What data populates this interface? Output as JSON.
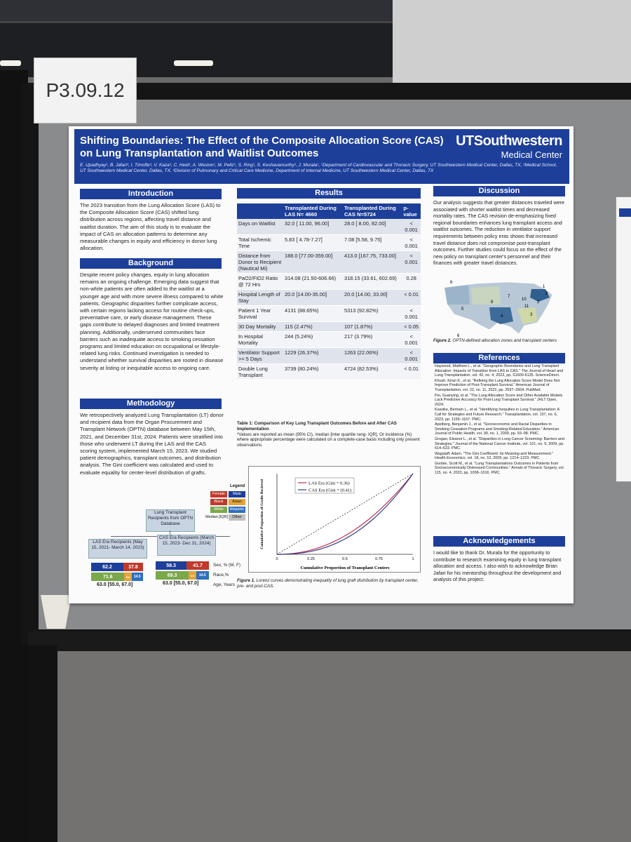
{
  "booth_number": "P3.09.12",
  "poster": {
    "title": "Shifting Boundaries: The Effect of the Composite Allocation Score (CAS) on Lung Transplantation and Waitlist Outcomes",
    "logo_line1": "UTSouthwestern",
    "logo_line2": "Medical Center",
    "authors": "E. Upadhyay¹, B. Jafari², I. Timofte³, V. Kaza³, C. Heid¹, A. Weston¹, M. Peltz¹, S. Ring¹, S. Keshavamurthy¹, J. Murala¹, ¹Department of Cardiovascular and Thoracic Surgery, UT Southwestern Medical Center, Dallas, TX, ²Medical School, UT Southwestern Medical Center, Dallas, TX, ³Division of Pulmonary and Critical Care Medicine, Department of Internal Medicine, UT Southwestern Medical Center, Dallas, TX",
    "introduction": {
      "heading": "Introduction",
      "text": "The 2023 transition from the Lung Allocation Score (LAS) to the Composite Allocation Score (CAS) shifted lung distribution across regions, affecting travel distance and waitlist duration. The aim of this study is to evaluate the impact of CAS on allocation patterns to determine any measurable changes in equity and efficiency in donor lung allocation."
    },
    "background": {
      "heading": "Background",
      "text": "Despite recent policy changes, equity in lung allocation remains an ongoing challenge. Emerging data suggest that non-white patients are often added to the waitlist at a younger age and with more severe illness compared to white patients. Geographic disparities further complicate access, with certain regions lacking access for routine check-ups, preventative care, or early disease management. These gaps contribute to delayed diagnoses and limited treatment planning. Additionally, underserved communities face barriers such as inadequate access to smoking cessation programs and limited education on occupational or lifestyle-related lung risks. Continued investigation is needed to understand whether survival disparities are rooted in disease severity at listing or inequitable access to ongoing care."
    },
    "methodology": {
      "heading": "Methodology",
      "text": "We retrospectively analyzed Lung Transplantation (LT) donor and recipient data from the Organ Procurement and Transplant Network (OPTN) database between May 15th, 2021, and December 31st, 2024. Patients were stratified into those who underwent LT during the LAS and the CAS scoring system, implemented March 15, 2023. We studied patient demographics, transplant outcomes, and distribution analysis. The Gini coefficient was calculated and used to evaluate equality for center-level distribution of grafts.",
      "flow_top": "Lung Transplant Recipients from OPTN Database",
      "flow_left": "LAS Era Recipients (May 15, 2021- March 14, 2023)",
      "flow_right": "CAS Era Recipients (March 15, 2023- Dec 31, 2024)",
      "legend_title": "Legend",
      "legend_items": [
        "Female",
        "Male",
        "Black",
        "Asian",
        "White",
        "Hispanic",
        "Median [IQR]",
        "Other"
      ],
      "las_sex": [
        "62.2",
        "37.8"
      ],
      "las_race": [
        "71.6",
        "8.8",
        "14.5"
      ],
      "las_age": "63.0 [55.0, 67.0]",
      "cas_sex": [
        "58.3",
        "41.7"
      ],
      "cas_race": [
        "69.3",
        "4.5",
        "14.5"
      ],
      "cas_age": "63.0 [55.0, 67.0]",
      "row_sex": "Sex, % (M, F)",
      "row_race": "Race,%",
      "row_age": "Age, Years"
    },
    "results": {
      "heading": "Results",
      "columns": [
        "",
        "Transplanted During LAS N= 4660",
        "Transplanted During CAS N=5724",
        "p-value"
      ],
      "rows": [
        [
          "Days on Waitlist",
          "32.0 [ 11.00, 96.00]",
          "28.0 [ 8.00, 82.00]",
          "< 0.001"
        ],
        [
          "Total Ischemic Time",
          "5.83 [ 4.78-7.27]",
          "7.08 [5.58, 9.75]",
          "< 0.001"
        ],
        [
          "Distance from Donor to Recipient (Nautical Mi)",
          "188.0 [77.00-359.00]",
          "413.0 [167.75, 733.00]",
          "< 0.001"
        ],
        [
          "PaO2/FiO2 Ratio @ 72 Hrs",
          "314.08 (21.50-606.66)",
          "318.15 (33.61, 602.69)",
          "0.28"
        ],
        [
          "Hospital Length of Stay",
          "20.0 [14.00-35.00]",
          "20.0 [14.00, 33.00]",
          "< 0.01"
        ],
        [
          "Patient 1 Year Survival",
          "4131 (88.65%)",
          "5313 (92.82%)",
          "< 0.001"
        ],
        [
          "30 Day Mortality",
          "115 (2.47%)",
          "107 (1.87%)",
          "< 0.05"
        ],
        [
          "In Hospital Mortality",
          "244 (5.24%)",
          "217 (3.79%)",
          "< 0.001"
        ],
        [
          "Ventilator Support >= 5 Days",
          "1229 (26.37%)",
          "1263 (22.06%)",
          "< 0.001"
        ],
        [
          "Double Lung Transplant",
          "3739 (80.24%)",
          "4724 (82.53%)",
          "< 0.01"
        ]
      ],
      "table_caption_bold": "Table 1: Comparison of Key Lung Transplant Outcomes Before and After CAS Implementation",
      "table_caption_note": "*Values are reported as mean (95% CI), median [inter quartile rang- IQR]. Or incidence (%) where appropriate percentage were calculated on a complete-case basis including only present observations.",
      "figure_caption_bold": "Figure 1.",
      "figure_caption": "Lorenz curves demonstrating inequality of lung graft distribution by transplant center, pre- and post-CAS."
    },
    "lorenz": {
      "legend_las": "LAS Era (Gini = 0.36)",
      "legend_cas": "CAS Era (Gini = (0.41)",
      "xlabel": "Cumulative Proportion of Transplant Centers",
      "ylabel": "Cumulative Proportion of Grafts Recieved",
      "ticks": [
        "0",
        "0.25",
        "0.5",
        "0.75",
        "1"
      ],
      "las_gini": 0.36,
      "cas_gini": 0.41,
      "las_color": "#c0334a",
      "cas_color": "#2f3f8f"
    },
    "discussion": {
      "heading": "Discussion",
      "text": "Our analysis suggests that greater distances traveled were associated with shorter waitlist times and decreased mortality rates. The CAS revision de-emphasizing fixed regional boundaries enhances lung transplant access and waitlist outcomes. The reduction in ventilator support requirements between policy eras shows that increased travel distance does not compromise post-transplant outcomes. Further studies could focus on the effect of the new policy on transplant center's personnel and their finances with greater travel distances.",
      "figure_caption_bold": "Figure 2.",
      "figure_caption": "OPTN-defined allocation zones and transplant centers",
      "map_labels": [
        "6",
        "1",
        "2",
        "3",
        "4",
        "5",
        "6",
        "7",
        "8",
        "9",
        "10",
        "11"
      ]
    },
    "references": {
      "heading": "References",
      "items": [
        "Haywood, Matthew L., et al. \"Geographic Boundaries and Lung Transplant Allocation: Impacts of Transition from LAS to CAS.\" The Journal of Heart and Lung Transplantation, vol. 42, no. 4, 2023, pp. S1600-6135. ScienceDirect.",
        "Khush, Kiran K., et al. \"Refining the Lung Allocation Score Model Does Not Improve Prediction of Post-Transplant Survival.\" American Journal of Transplantation, vol. 22, no. 11, 2022, pp. 2597–2604. PubMed.",
        "Pei, Guanying, et al. \"The Lung Allocation Score and Other Available Models Lack Predictive Accuracy for Post-Lung Transplant Survival.\" JHLT Open, 2024.",
        "Kassike, Bertram L., et al. \"Identifying Inequities in Lung Transplantation: A Call for Strategies and Future Research.\" Transplantation, vol. 107, no. 6, 2023, pp. 1159–1167. PMC.",
        "Apelberg, Benjamin J., et al. \"Socioeconomic and Racial Disparities in Smoking Cessation Programs and Smoking-Related Education.\" American Journal of Public Health, vol. 99, no. 1, 2009, pp. 93–98. PMC.",
        "Grogan, Eleanor L., et al. \"Disparities in Lung Cancer Screening: Barriers and Strategies.\" Journal of the National Cancer Institute, vol. 101, no. 9, 2009, pp. 614–623. PMC.",
        "Wagstaff, Adam. \"The Gini Coefficient: Its Meaning and Measurement.\" Health Economics, vol. 18, no. 10, 2009, pp. 1214–1223. PMC.",
        "Goobie, Scott M., et al. \"Lung Transplantations Outcomes in Patients from Socioeconomically Distressed Communities.\" Annals of Thoracic Surgery, vol. 115, no. 4, 2023, pp. 1008–1016. PMC."
      ]
    },
    "acknowledgements": {
      "heading": "Acknowledgements",
      "text": "I would like to thank Dr. Murala for the opportunity to contribute to research examining equity in lung transplant allocation and access. I also wish to acknowledge Brian Jafari for his mentorship throughout the development and analysis of this project."
    }
  },
  "colors": {
    "header_blue": "#1d3f9a",
    "female": "#c0392b",
    "male": "#1d3f9a",
    "black": "#c0392b",
    "asian": "#e3a43a",
    "white": "#7aa84a",
    "hispanic": "#2f6fbf",
    "other": "#bfbfbf"
  }
}
